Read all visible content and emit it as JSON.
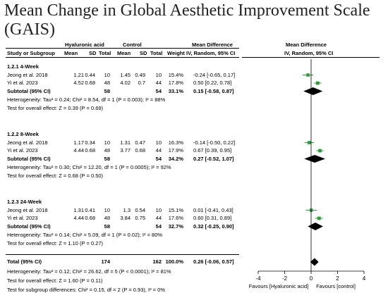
{
  "title": "Mean Change in Global Aesthetic Improvement Scale (GAIS)",
  "headers": {
    "group1": "Hyaluronic acid",
    "group2": "Control",
    "md": "Mean Difference",
    "md_sub": "IV, Random, 95% CI",
    "plot_md": "Mean Difference",
    "plot_md_sub": "IV, Random, 95% CI",
    "study": "Study or Subgroup",
    "mean": "Mean",
    "sd": "SD",
    "total": "Total",
    "mean2": "Mean",
    "sd2": "SD",
    "total2": "Total",
    "weight": "Weight"
  },
  "chart_data": {
    "type": "forest",
    "xlim": [
      -4,
      4
    ],
    "xticks": [
      "-4",
      "-2",
      "0",
      "2",
      "4"
    ],
    "xtick_values": [
      -4,
      -2,
      0,
      2,
      4
    ],
    "favours_left": "Favours [Hyaluronic acid]",
    "favours_right": "Favours [control]",
    "subgroups": [
      {
        "name": "1.2.1 4-Week",
        "studies": [
          {
            "study": "Jeong et al. 2018",
            "m1": "1.21",
            "sd1": "0.44",
            "n1": "10",
            "m2": "1.45",
            "sd2": "0.49",
            "n2": "10",
            "weight": "15.4%",
            "ci_text": "-0.24 [-0.65, 0.17]",
            "est": -0.24,
            "lo": -0.65,
            "hi": 0.17
          },
          {
            "study": "Yi et al. 2023",
            "m1": "4.52",
            "sd1": "0.68",
            "n1": "48",
            "m2": "4.02",
            "sd2": "0.7",
            "n2": "44",
            "weight": "17.8%",
            "ci_text": "0.50 [0.22, 0.78]",
            "est": 0.5,
            "lo": 0.22,
            "hi": 0.78
          }
        ],
        "subtotal": {
          "label": "Subtotal (95% CI)",
          "n1": "58",
          "n2": "54",
          "weight": "33.1%",
          "ci_text": "0.15 [-0.58, 0.87]",
          "est": 0.15,
          "lo": -0.58,
          "hi": 0.87
        },
        "heterogeneity": "Heterogeneity: Tau² = 0.24; Chi² = 8.54, df = 1 (P = 0.003); I² = 88%",
        "overall": "Test for overall effect: Z = 0.39 (P = 0.69)"
      },
      {
        "name": "1.2.2 8-Week",
        "studies": [
          {
            "study": "Jeong et al. 2018",
            "m1": "1.17",
            "sd1": "0.34",
            "n1": "10",
            "m2": "1.31",
            "sd2": "0.47",
            "n2": "10",
            "weight": "16.3%",
            "ci_text": "-0.14 [-0.50, 0.22]",
            "est": -0.14,
            "lo": -0.5,
            "hi": 0.22
          },
          {
            "study": "Yi et al. 2023",
            "m1": "4.44",
            "sd1": "0.68",
            "n1": "48",
            "m2": "3.77",
            "sd2": "0.68",
            "n2": "44",
            "weight": "17.9%",
            "ci_text": "0.67 [0.39, 0.95]",
            "est": 0.67,
            "lo": 0.39,
            "hi": 0.95
          }
        ],
        "subtotal": {
          "label": "Subtotal (95% CI)",
          "n1": "58",
          "n2": "54",
          "weight": "34.2%",
          "ci_text": "0.27 [-0.52, 1.07]",
          "est": 0.27,
          "lo": -0.52,
          "hi": 1.07
        },
        "heterogeneity": "Heterogeneity: Tau² = 0.30; Chi² = 12.20, df = 1 (P = 0.0005); I² = 92%",
        "overall": "Test for overall effect: Z = 0.68 (P = 0.50)"
      },
      {
        "name": "1.2.3 24-Week",
        "studies": [
          {
            "study": "Jeong et al. 2018",
            "m1": "1.31",
            "sd1": "0.41",
            "n1": "10",
            "m2": "1.3",
            "sd2": "0.54",
            "n2": "10",
            "weight": "15.1%",
            "ci_text": "0.01 [-0.41, 0.43]",
            "est": 0.01,
            "lo": -0.41,
            "hi": 0.43
          },
          {
            "study": "Yi et al. 2023",
            "m1": "4.44",
            "sd1": "0.68",
            "n1": "48",
            "m2": "3.84",
            "sd2": "0.75",
            "n2": "44",
            "weight": "17.6%",
            "ci_text": "0.60 [0.31, 0.89]",
            "est": 0.6,
            "lo": 0.31,
            "hi": 0.89
          }
        ],
        "subtotal": {
          "label": "Subtotal (95% CI)",
          "n1": "58",
          "n2": "54",
          "weight": "32.7%",
          "ci_text": "0.32 [-0.25, 0.90]",
          "est": 0.32,
          "lo": -0.25,
          "hi": 0.9
        },
        "heterogeneity": "Heterogeneity: Tau² = 0.14; Chi² = 5.09, df = 1 (P = 0.02); I² = 80%",
        "overall": "Test for overall effect: Z = 1.10 (P = 0.27)"
      }
    ],
    "total": {
      "label": "Total (95% CI)",
      "n1": "174",
      "n2": "162",
      "weight": "100.0%",
      "ci_text": "0.26 [-0.06, 0.57]",
      "est": 0.26,
      "lo": -0.06,
      "hi": 0.57
    },
    "total_heterogeneity": "Heterogeneity: Tau² = 0.12; Chi² = 26.62, df = 5 (P < 0.0001); I² = 81%",
    "total_overall": "Test for overall effect: Z = 1.60 (P = 0.11)",
    "subgroup_test": "Test for subgroup differences: Chi² = 0.15, df = 2 (P = 0.93), I² = 0%",
    "colors": {
      "study_marker": "#2e9a3a",
      "diamond": "#000000",
      "ci_line": "#2e9a3a"
    }
  }
}
